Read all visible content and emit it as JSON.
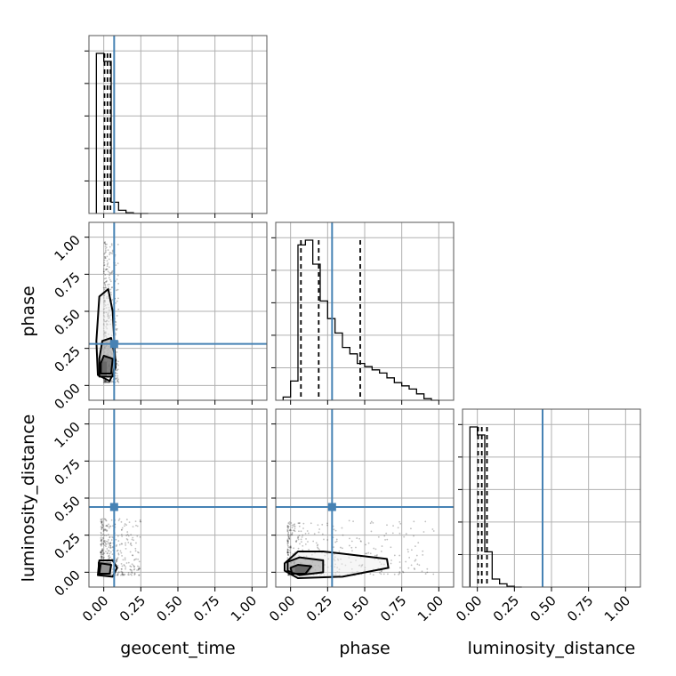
{
  "chart_data": {
    "type": "corner",
    "parameters": [
      "geocent_time",
      "phase",
      "luminosity_distance"
    ],
    "axis_range": [
      -0.1,
      1.1
    ],
    "ticks": [
      0.0,
      0.25,
      0.5,
      0.75,
      1.0
    ],
    "tick_labels": [
      "0.00",
      "0.25",
      "0.50",
      "0.75",
      "1.00"
    ],
    "grid": true,
    "truths": {
      "geocent_time": 0.07,
      "phase": 0.28,
      "luminosity_distance": 0.44
    },
    "colors": {
      "truth": "#4682b4",
      "hist": "#000000",
      "quantile": "#000000",
      "points": "#000000"
    },
    "histograms": {
      "geocent_time": {
        "edges": [
          -0.05,
          0.0,
          0.05,
          0.1,
          0.15,
          0.2,
          0.25,
          0.3
        ],
        "counts": [
          1.0,
          0.95,
          0.07,
          0.02,
          0.005,
          0.0,
          0.0
        ],
        "quantiles": [
          0.005,
          0.025,
          0.045
        ]
      },
      "phase": {
        "edges": [
          -0.05,
          0.0,
          0.05,
          0.1,
          0.15,
          0.2,
          0.25,
          0.3,
          0.35,
          0.4,
          0.45,
          0.5,
          0.55,
          0.6,
          0.65,
          0.7,
          0.75,
          0.8,
          0.85,
          0.9,
          0.95,
          1.0
        ],
        "counts": [
          0.02,
          0.12,
          0.97,
          1.0,
          0.85,
          0.62,
          0.51,
          0.42,
          0.33,
          0.29,
          0.23,
          0.21,
          0.19,
          0.17,
          0.14,
          0.11,
          0.09,
          0.07,
          0.04,
          0.01,
          0.0
        ],
        "quantiles": [
          0.07,
          0.19,
          0.47
        ]
      },
      "luminosity_distance": {
        "edges": [
          -0.05,
          0.0,
          0.05,
          0.1,
          0.15,
          0.2,
          0.25,
          0.3
        ],
        "counts": [
          1.0,
          0.95,
          0.22,
          0.05,
          0.02,
          0.005,
          0.0
        ],
        "quantiles": [
          0.005,
          0.03,
          0.065
        ]
      }
    },
    "panels_2d": [
      {
        "x": "geocent_time",
        "y": "phase",
        "x_spread": [
          0.0,
          0.1
        ],
        "y_spread": [
          0.02,
          0.97
        ],
        "contours": [
          [
            [
              -0.04,
              0.07
            ],
            [
              0.04,
              0.03
            ],
            [
              0.08,
              0.12
            ],
            [
              0.06,
              0.5
            ],
            [
              0.03,
              0.65
            ],
            [
              -0.03,
              0.6
            ],
            [
              -0.05,
              0.3
            ]
          ],
          [
            [
              -0.03,
              0.06
            ],
            [
              0.06,
              0.06
            ],
            [
              0.08,
              0.17
            ],
            [
              0.05,
              0.32
            ],
            [
              -0.01,
              0.3
            ],
            [
              -0.03,
              0.18
            ]
          ],
          [
            [
              -0.02,
              0.08
            ],
            [
              0.05,
              0.08
            ],
            [
              0.06,
              0.18
            ],
            [
              0.0,
              0.2
            ],
            [
              -0.02,
              0.15
            ]
          ]
        ],
        "density_core": {
          "x": [
            -0.025,
            0.02
          ],
          "y": [
            0.06,
            0.16
          ]
        }
      },
      {
        "x": "geocent_time",
        "y": "luminosity_distance",
        "x_spread": [
          -0.02,
          0.25
        ],
        "y_spread": [
          -0.02,
          0.36
        ],
        "contours": [
          [
            [
              -0.04,
              -0.02
            ],
            [
              0.06,
              -0.03
            ],
            [
              0.09,
              0.03
            ],
            [
              0.06,
              0.08
            ],
            [
              -0.03,
              0.08
            ]
          ],
          [
            [
              -0.03,
              -0.01
            ],
            [
              0.04,
              -0.01
            ],
            [
              0.05,
              0.05
            ],
            [
              -0.02,
              0.06
            ]
          ]
        ],
        "density_core": {
          "x": [
            -0.04,
            0.05
          ],
          "y": [
            -0.02,
            0.07
          ]
        }
      },
      {
        "x": "phase",
        "y": "luminosity_distance",
        "x_spread": [
          -0.02,
          0.97
        ],
        "y_spread": [
          -0.02,
          0.35
        ],
        "contours": [
          [
            [
              -0.04,
              0.01
            ],
            [
              0.05,
              -0.04
            ],
            [
              0.35,
              -0.03
            ],
            [
              0.66,
              0.03
            ],
            [
              0.65,
              0.09
            ],
            [
              0.22,
              0.14
            ],
            [
              0.05,
              0.14
            ],
            [
              -0.04,
              0.06
            ]
          ],
          [
            [
              -0.02,
              0.01
            ],
            [
              0.06,
              -0.02
            ],
            [
              0.22,
              0.0
            ],
            [
              0.22,
              0.08
            ],
            [
              0.06,
              0.1
            ],
            [
              -0.02,
              0.07
            ]
          ],
          [
            [
              0.01,
              -0.01
            ],
            [
              0.1,
              -0.01
            ],
            [
              0.14,
              0.04
            ],
            [
              0.05,
              0.05
            ],
            [
              0.0,
              0.03
            ]
          ]
        ],
        "density_core": {
          "x": [
            0.03,
            0.13
          ],
          "y": [
            -0.015,
            0.05
          ]
        }
      }
    ]
  }
}
